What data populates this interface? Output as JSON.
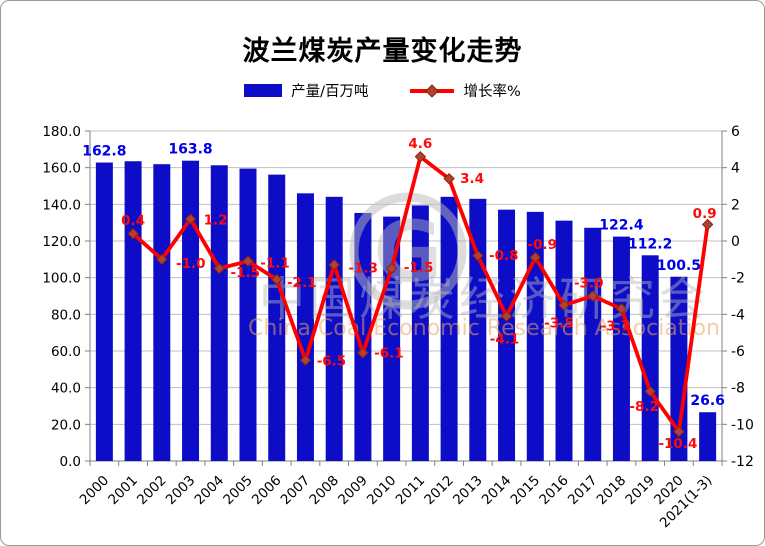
{
  "title": "波兰煤炭产量变化走势",
  "legend": {
    "bar_label": "产量/百万吨",
    "line_label": "增长率%"
  },
  "watermark": {
    "logo_letter": "G",
    "cn": "中国煤炭经济研究会",
    "en": "China Coal Economic Research Association"
  },
  "colors": {
    "bar": "#0D0DC8",
    "bar_label": "#0000E6",
    "line": "#FF0000",
    "line_label": "#FF0A0A",
    "marker_fill": "#B04038",
    "marker_stroke": "#8B2500",
    "grid": "#C0C0C0",
    "axis": "#808080",
    "text": "#000000",
    "watermark_gray": "#B9B9B9",
    "watermark_orange": "#E8A65E"
  },
  "chart_data": {
    "type": "bar+line combo",
    "title": "波兰煤炭产量变化走势",
    "grid": true,
    "legend_position": "top",
    "categories": [
      "2000",
      "2001",
      "2002",
      "2003",
      "2004",
      "2005",
      "2006",
      "2007",
      "2008",
      "2009",
      "2010",
      "2011",
      "2012",
      "2013",
      "2014",
      "2015",
      "2016",
      "2017",
      "2018",
      "2019",
      "2020",
      "2021(1-3)"
    ],
    "left_axis": {
      "label": "产量/百万吨",
      "min": 0,
      "max": 180,
      "step": 20,
      "ticks": [
        "180.0",
        "160.0",
        "140.0",
        "120.0",
        "100.0",
        "80.0",
        "60.0",
        "40.0",
        "20.0",
        "0.0"
      ]
    },
    "right_axis": {
      "label": "增长率%",
      "min": -12,
      "max": 6,
      "step": 2,
      "ticks": [
        "6",
        "4",
        "2",
        "0",
        "-2",
        "-4",
        "-6",
        "-8",
        "-10",
        "-12"
      ]
    },
    "series": [
      {
        "name": "产量/百万吨",
        "type": "bar",
        "axis": "left",
        "values": [
          162.8,
          163.5,
          161.9,
          163.8,
          161.3,
          159.5,
          156.2,
          146.0,
          144.1,
          135.3,
          133.3,
          139.4,
          144.1,
          143.0,
          137.1,
          135.9,
          131.1,
          127.2,
          122.4,
          112.2,
          100.5,
          26.6
        ],
        "value_labels": [
          {
            "index": 0,
            "text": "162.8"
          },
          {
            "index": 3,
            "text": "163.8"
          },
          {
            "index": 18,
            "text": "122.4"
          },
          {
            "index": 19,
            "text": "112.2"
          },
          {
            "index": 20,
            "text": "100.5"
          },
          {
            "index": 21,
            "text": "26.6"
          }
        ]
      },
      {
        "name": "增长率%",
        "type": "line",
        "axis": "right",
        "start_index": 1,
        "values": [
          0.4,
          -1.0,
          1.2,
          -1.5,
          -1.1,
          -2.1,
          -6.5,
          -1.3,
          -6.1,
          -1.5,
          4.6,
          3.4,
          -0.8,
          -4.1,
          -0.9,
          -3.5,
          -3.0,
          -3.7,
          -8.2,
          -10.4,
          0.9
        ],
        "point_labels": [
          "0.4",
          "-1.0",
          "1.2",
          "-1.5",
          "-1.1",
          "-2.1",
          "-6.5",
          "-1.3",
          "-6.1",
          "-1.5",
          "4.6",
          "3.4",
          "-0.8",
          "-4.1",
          "-0.9",
          "-3.5",
          "-3.0",
          "-3.7",
          "-8.2",
          "-10.4",
          "0.9"
        ],
        "label_offsets": [
          [
            0,
            -13
          ],
          [
            29,
            4
          ],
          [
            25,
            1
          ],
          [
            26,
            4
          ],
          [
            27,
            2
          ],
          [
            25,
            3
          ],
          [
            26,
            1
          ],
          [
            29,
            3
          ],
          [
            26,
            0
          ],
          [
            27,
            -1
          ],
          [
            0,
            -13
          ],
          [
            23,
            0
          ],
          [
            26,
            0
          ],
          [
            -2,
            23
          ],
          [
            7,
            -13
          ],
          [
            -5,
            18
          ],
          [
            -4,
            -13
          ],
          [
            -6,
            17
          ],
          [
            -6,
            15
          ],
          [
            -1,
            12
          ],
          [
            -3,
            -11
          ]
        ]
      }
    ]
  }
}
